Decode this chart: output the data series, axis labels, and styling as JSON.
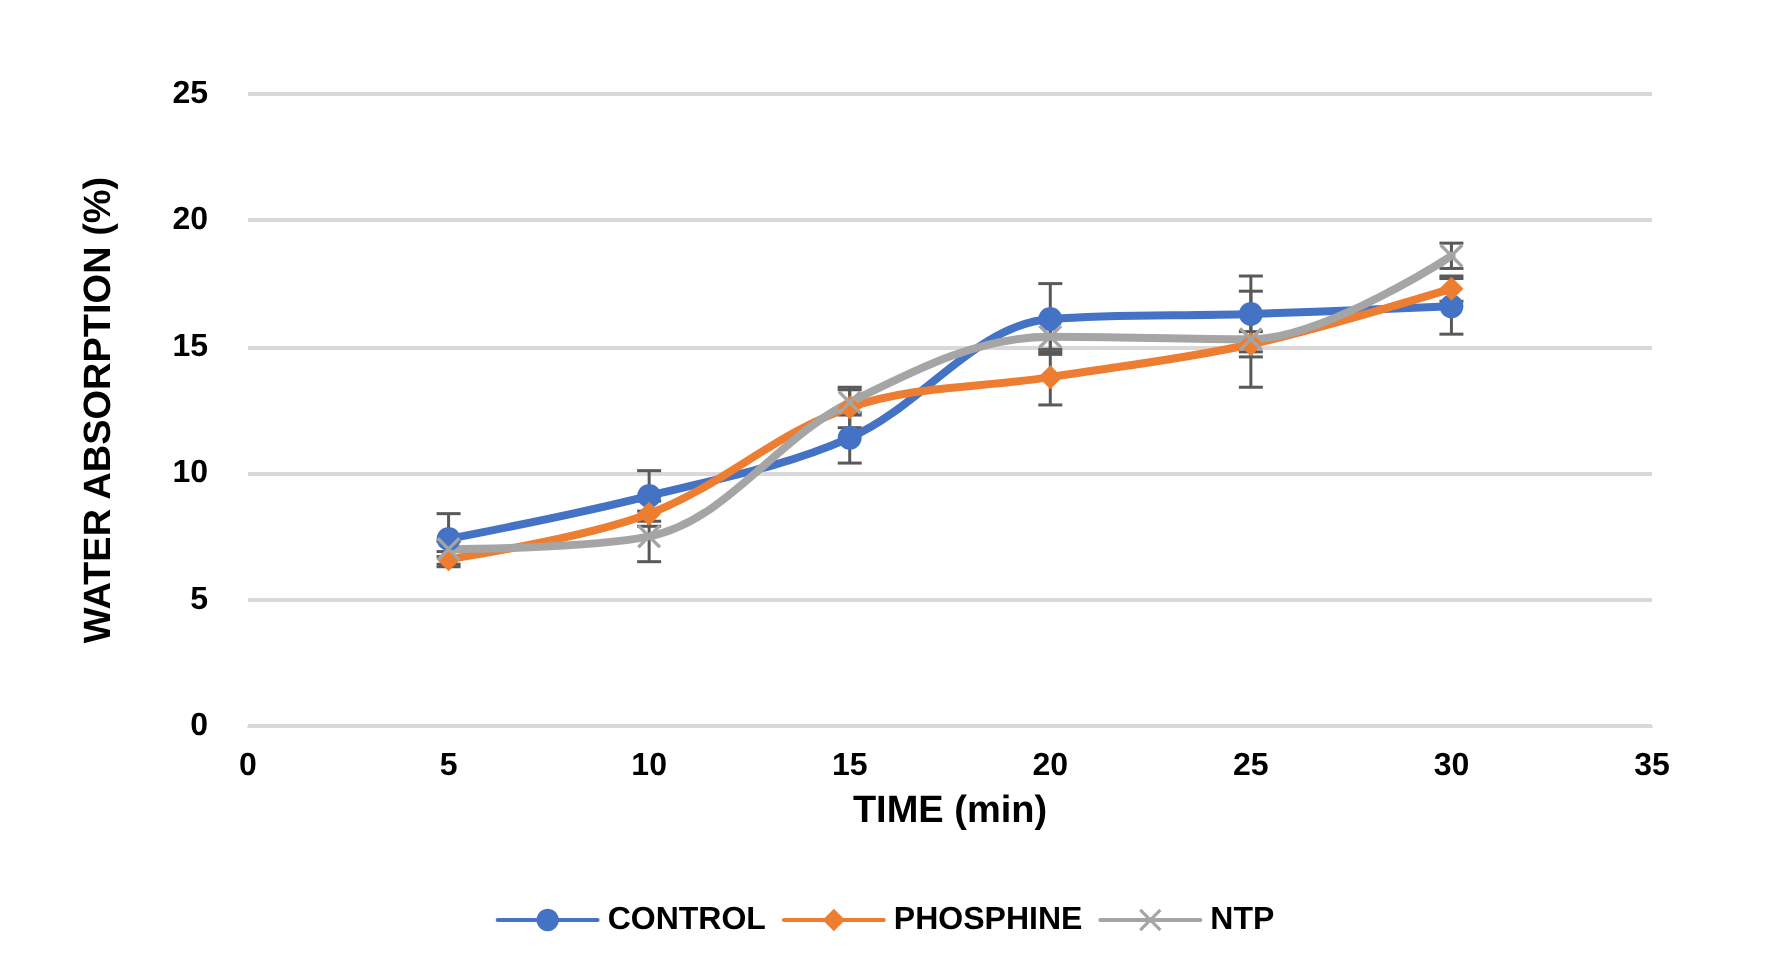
{
  "chart_data": {
    "type": "line",
    "xlabel": "TIME (min)",
    "ylabel": "WATER ABSORPTION (%)",
    "x": [
      5,
      10,
      15,
      20,
      25,
      30
    ],
    "xlim": [
      0,
      35
    ],
    "xticks": [
      0,
      5,
      10,
      15,
      20,
      25,
      30,
      35
    ],
    "ylim": [
      0,
      25
    ],
    "yticks": [
      0,
      5,
      10,
      15,
      20,
      25
    ],
    "grid": "y",
    "legend": "bottom",
    "line_style": "solid",
    "series": [
      {
        "name": "CONTROL",
        "color": "#4472c4",
        "marker": "circle",
        "values": [
          7.4,
          9.1,
          11.4,
          16.1,
          16.3,
          16.6
        ],
        "errors": [
          1.0,
          1.0,
          1.0,
          1.4,
          1.5,
          1.1
        ]
      },
      {
        "name": "PHOSPHINE",
        "color": "#ed7d31",
        "marker": "diamond",
        "values": [
          6.6,
          8.4,
          12.6,
          13.8,
          15.1,
          17.3
        ],
        "errors": [
          0.3,
          0.5,
          0.8,
          1.1,
          0.5,
          0.5
        ]
      },
      {
        "name": "NTP",
        "color": "#a5a5a5",
        "marker": "cross",
        "values": [
          7.0,
          7.5,
          12.8,
          15.4,
          15.3,
          18.6
        ],
        "errors": [
          0.3,
          1.0,
          0.5,
          0.6,
          1.9,
          0.5
        ]
      }
    ]
  }
}
